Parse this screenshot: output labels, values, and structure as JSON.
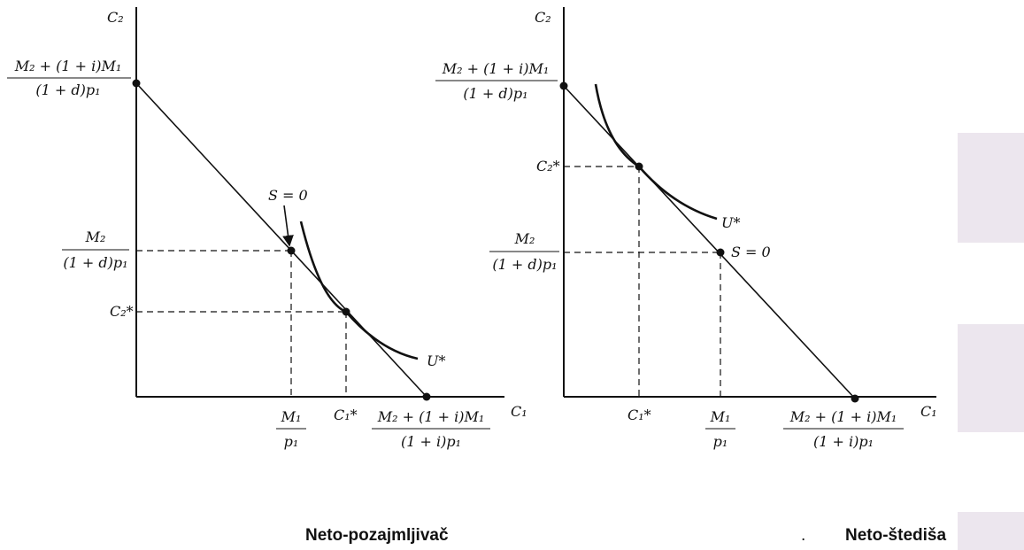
{
  "left": {
    "y_axis": "C₂",
    "x_axis": "C₁",
    "y_intercept": {
      "num": "M₂ + (1 + i)M₁",
      "den": "(1 + d)p₁"
    },
    "endowment_y": {
      "num": "M₂",
      "den": "(1 + d)p₁"
    },
    "optimum_y": "C₂*",
    "endowment_x": {
      "num": "M₁",
      "den": "p₁"
    },
    "optimum_x": "C₁*",
    "x_intercept": {
      "num": "M₂ + (1 + i)M₁",
      "den": "(1 + i)p₁"
    },
    "savings_label": "S = 0",
    "curve_label": "U*",
    "caption": "Neto-pozajmljivač"
  },
  "right": {
    "y_axis": "C₂",
    "x_axis": "C₁",
    "y_intercept": {
      "num": "M₂ + (1 + i)M₁",
      "den": "(1 + d)p₁"
    },
    "optimum_y": "C₂*",
    "endowment_y": {
      "num": "M₂",
      "den": "(1 + d)p₁"
    },
    "optimum_x": "C₁*",
    "endowment_x": {
      "num": "M₁",
      "den": "p₁"
    },
    "x_intercept": {
      "num": "M₂ + (1 + i)M₁",
      "den": "(1 + i)p₁"
    },
    "savings_label": "S = 0",
    "curve_label": "U*",
    "caption": "Neto-štediša"
  },
  "dot_text": "."
}
